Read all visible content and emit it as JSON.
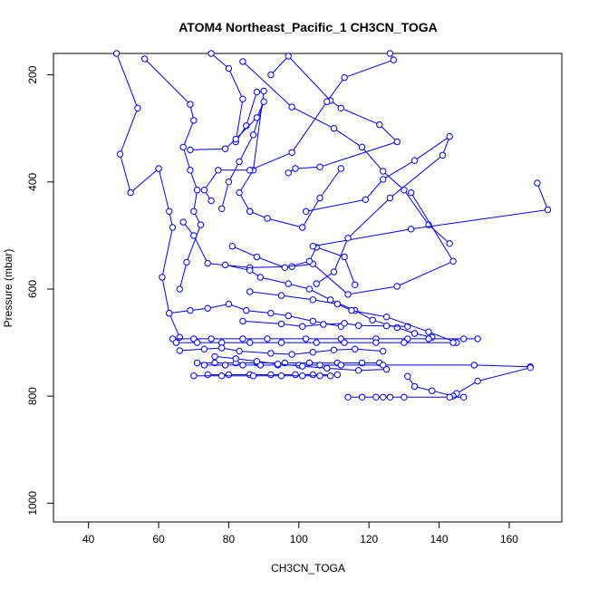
{
  "chart_data": {
    "type": "line",
    "title": "ATOM4 Northeast_Pacific_1 CH3CN_TOGA",
    "xlabel": "CH3CN_TOGA",
    "ylabel": "Pressure (mbar)",
    "xlim": [
      30,
      175
    ],
    "ylim": [
      1035,
      160
    ],
    "y_reversed": true,
    "xticks": [
      40,
      60,
      80,
      100,
      120,
      140,
      160
    ],
    "yticks": [
      200,
      400,
      600,
      800,
      1000
    ],
    "grid": false,
    "color": "#0000ff",
    "series": [
      {
        "x": [
          48,
          54,
          49,
          52,
          60,
          63,
          64,
          61,
          63,
          66
        ],
        "y": [
          160,
          262,
          348,
          420,
          375,
          455,
          485,
          578,
          645,
          690
        ]
      },
      {
        "x": [
          56,
          69,
          70,
          67,
          69,
          71,
          70,
          72,
          68,
          66
        ],
        "y": [
          170,
          255,
          285,
          335,
          378,
          415,
          455,
          480,
          550,
          600
        ]
      },
      {
        "x": [
          75,
          80,
          84,
          82,
          85,
          88,
          90,
          87,
          83,
          86
        ],
        "y": [
          160,
          188,
          245,
          325,
          295,
          232,
          230,
          378,
          420,
          455
        ]
      },
      {
        "x": [
          92,
          97,
          109,
          112,
          123,
          128,
          106,
          99,
          97
        ],
        "y": [
          200,
          165,
          248,
          262,
          293,
          325,
          372,
          375,
          383
        ]
      },
      {
        "x": [
          126,
          127,
          113,
          108,
          98,
          86,
          77,
          73,
          75
        ],
        "y": [
          160,
          172,
          205,
          250,
          345,
          378,
          378,
          415,
          435
        ]
      },
      {
        "x": [
          84,
          98,
          110,
          118,
          124,
          130,
          137,
          143
        ],
        "y": [
          175,
          260,
          300,
          335,
          380,
          415,
          480,
          515
        ]
      },
      {
        "x": [
          69,
          79,
          82,
          88,
          90,
          87,
          83,
          80,
          78
        ],
        "y": [
          340,
          338,
          320,
          280,
          250,
          312,
          362,
          400,
          450
        ]
      },
      {
        "x": [
          67,
          70,
          74,
          86,
          98,
          104,
          114,
          128,
          144,
          132
        ],
        "y": [
          475,
          500,
          552,
          560,
          558,
          553,
          610,
          595,
          548,
          420
        ]
      },
      {
        "x": [
          81,
          88,
          96,
          103,
          105,
          113,
          116
        ],
        "y": [
          520,
          540,
          560,
          548,
          522,
          540,
          592
        ]
      },
      {
        "x": [
          86,
          91,
          101,
          106,
          112
        ],
        "y": [
          455,
          468,
          485,
          430,
          375
        ]
      },
      {
        "x": [
          104,
          132,
          171,
          168
        ],
        "y": [
          520,
          488,
          452,
          402
        ]
      },
      {
        "x": [
          102,
          119,
          124,
          133,
          143,
          141,
          126,
          114,
          110,
          105
        ],
        "y": [
          455,
          433,
          395,
          360,
          315,
          350,
          430,
          505,
          568,
          590
        ]
      },
      {
        "x": [
          79,
          86,
          89,
          97,
          103,
          109,
          116,
          121,
          128,
          133,
          138
        ],
        "y": [
          555,
          565,
          578,
          590,
          600,
          620,
          640,
          658,
          672,
          683,
          690
        ]
      },
      {
        "x": [
          63,
          69,
          74,
          80,
          85,
          92,
          97,
          104,
          112
        ],
        "y": [
          645,
          640,
          636,
          628,
          640,
          645,
          650,
          660,
          670
        ]
      },
      {
        "x": [
          84,
          95,
          101,
          107,
          113,
          117,
          125,
          131
        ],
        "y": [
          660,
          665,
          670,
          666,
          664,
          668,
          669,
          670
        ]
      },
      {
        "x": [
          86,
          95,
          104,
          111,
          115,
          125,
          137,
          145
        ],
        "y": [
          605,
          612,
          620,
          628,
          640,
          652,
          680,
          700
        ]
      },
      {
        "x": [
          64,
          70,
          75,
          84,
          91,
          102,
          112,
          122,
          131,
          137,
          147,
          151
        ],
        "y": [
          693,
          693,
          693,
          693,
          693,
          693,
          693,
          693,
          693,
          693,
          693,
          693
        ]
      },
      {
        "x": [
          65,
          71,
          78,
          86,
          95,
          105,
          113,
          122,
          130,
          144
        ],
        "y": [
          700,
          700,
          700,
          700,
          700,
          700,
          700,
          700,
          700,
          700
        ]
      },
      {
        "x": [
          66,
          73,
          78,
          83,
          92,
          98,
          104,
          110,
          116,
          124
        ],
        "y": [
          715,
          712,
          710,
          716,
          720,
          722,
          718,
          714,
          712,
          716
        ]
      },
      {
        "x": [
          71,
          76,
          82,
          88,
          96,
          103,
          111,
          118,
          123
        ],
        "y": [
          738,
          738,
          738,
          738,
          738,
          738,
          738,
          738,
          738
        ]
      },
      {
        "x": [
          73,
          79,
          84,
          89,
          94,
          100,
          106,
          112,
          124,
          150,
          166
        ],
        "y": [
          742,
          742,
          742,
          742,
          742,
          742,
          742,
          742,
          742,
          742,
          745
        ]
      },
      {
        "x": [
          76,
          82,
          88,
          94,
          101,
          108,
          117,
          125
        ],
        "y": [
          726,
          730,
          735,
          740,
          744,
          748,
          752,
          750
        ]
      },
      {
        "x": [
          74,
          80,
          86,
          92,
          99,
          104,
          111
        ],
        "y": [
          760,
          760,
          760,
          760,
          760,
          760,
          760
        ]
      },
      {
        "x": [
          70,
          78,
          87,
          95,
          101,
          106,
          109
        ],
        "y": [
          762,
          762,
          762,
          762,
          762,
          762,
          762
        ]
      },
      {
        "x": [
          166,
          151,
          145,
          144,
          138,
          133,
          131
        ],
        "y": [
          747,
          772,
          795,
          800,
          790,
          782,
          763
        ]
      },
      {
        "x": [
          114,
          118,
          122,
          124,
          126,
          130,
          143,
          147
        ],
        "y": [
          802,
          802,
          802,
          802,
          802,
          802,
          802,
          802
        ]
      }
    ]
  }
}
